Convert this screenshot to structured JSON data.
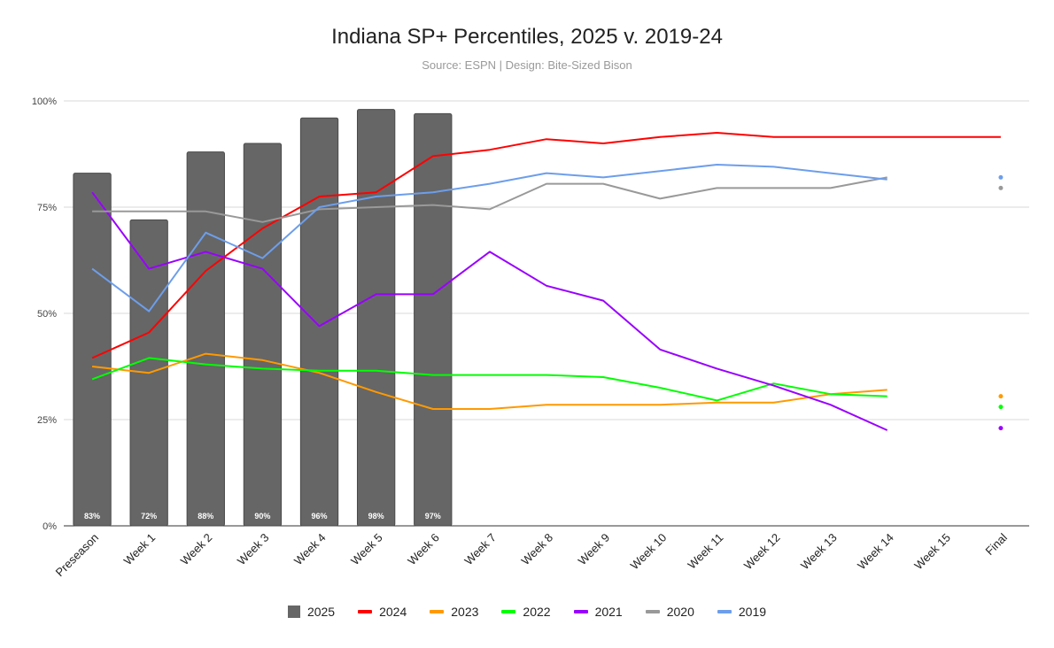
{
  "chart_data": {
    "type": "bar+line",
    "title": "Indiana SP+ Percentiles, 2025 v. 2019-24",
    "subtitle": "Source: ESPN | Design: Bite-Sized Bison",
    "categories": [
      "Preseason",
      "Week 1",
      "Week 2",
      "Week 3",
      "Week 4",
      "Week 5",
      "Week 6",
      "Week 7",
      "Week 8",
      "Week 9",
      "Week 10",
      "Week 11",
      "Week 12",
      "Week 13",
      "Week 14",
      "Week 15",
      "Final"
    ],
    "ylim": [
      0,
      100
    ],
    "yticks": [
      0,
      25,
      50,
      75,
      100
    ],
    "ytick_labels": [
      "0%",
      "25%",
      "50%",
      "75%",
      "100%"
    ],
    "grid": true,
    "legend_position": "bottom",
    "bar_series": {
      "name": "2025",
      "color": "#666666",
      "values": [
        83,
        72,
        88,
        90,
        96,
        98,
        97,
        null,
        null,
        null,
        null,
        null,
        null,
        null,
        null,
        null,
        null
      ],
      "labels": [
        "83%",
        "72%",
        "88%",
        "90%",
        "96%",
        "98%",
        "97%"
      ]
    },
    "line_series": [
      {
        "name": "2024",
        "color": "#ff0000",
        "values": [
          39.5,
          45.5,
          60,
          70,
          77.5,
          78.5,
          87,
          88.5,
          91,
          90,
          91.5,
          92.5,
          91.5,
          91.5,
          91.5,
          91.5,
          91.5
        ]
      },
      {
        "name": "2023",
        "color": "#ff9900",
        "values": [
          37.5,
          36,
          40.5,
          39,
          36,
          31.5,
          27.5,
          27.5,
          28.5,
          28.5,
          28.5,
          29,
          29,
          31,
          32,
          null,
          30.5
        ]
      },
      {
        "name": "2022",
        "color": "#00ff00",
        "values": [
          34.5,
          39.5,
          38,
          37,
          36.5,
          36.5,
          35.5,
          35.5,
          35.5,
          35,
          32.5,
          29.5,
          33.5,
          31,
          30.5,
          null,
          28
        ]
      },
      {
        "name": "2021",
        "color": "#9900ff",
        "values": [
          78.5,
          60.5,
          64.5,
          60.5,
          47,
          54.5,
          54.5,
          64.5,
          56.5,
          53,
          41.5,
          37,
          33,
          28.5,
          22.5,
          null,
          23
        ]
      },
      {
        "name": "2020",
        "color": "#999999",
        "values": [
          74,
          74,
          74,
          71.5,
          74.5,
          75,
          75.5,
          74.5,
          80.5,
          80.5,
          77,
          79.5,
          79.5,
          79.5,
          82,
          null,
          79.5
        ]
      },
      {
        "name": "2019",
        "color": "#6d9eeb",
        "values": [
          60.5,
          50.5,
          69,
          63,
          75,
          77.5,
          78.5,
          80.5,
          83,
          82,
          83.5,
          85,
          84.5,
          83,
          81.5,
          null,
          82
        ]
      }
    ]
  }
}
